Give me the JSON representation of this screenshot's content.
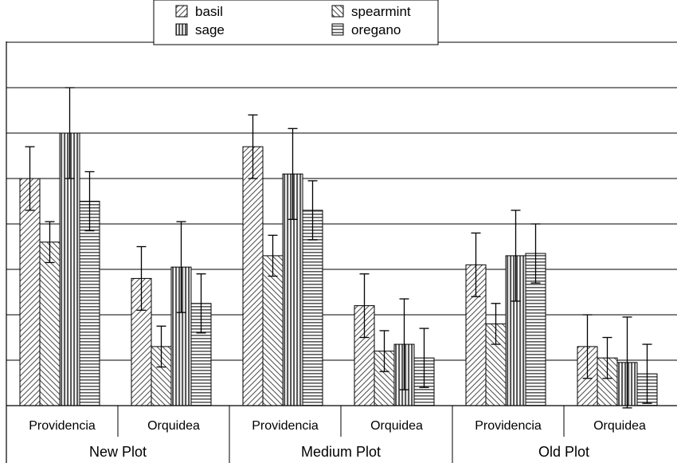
{
  "chart_data": {
    "type": "bar",
    "groups": [
      {
        "label": "New Plot",
        "subgroups": [
          "Providencia",
          "Orquidea"
        ]
      },
      {
        "label": "Medium Plot",
        "subgroups": [
          "Providencia",
          "Orquidea"
        ]
      },
      {
        "label": "Old Plot",
        "subgroups": [
          "Providencia",
          "Orquidea"
        ]
      }
    ],
    "categories": [
      "Providencia",
      "Orquidea",
      "Providencia",
      "Orquidea",
      "Providencia",
      "Orquidea"
    ],
    "series": [
      {
        "name": "basil",
        "pattern": "diag-up",
        "values": [
          5.0,
          2.8,
          5.7,
          2.2,
          3.1,
          1.3
        ],
        "errors": [
          0.7,
          0.7,
          0.7,
          0.7,
          0.7,
          0.7
        ]
      },
      {
        "name": "spearmint",
        "pattern": "diag-down",
        "values": [
          3.6,
          1.3,
          3.3,
          1.2,
          1.8,
          1.05
        ],
        "errors": [
          0.45,
          0.45,
          0.45,
          0.45,
          0.45,
          0.45
        ]
      },
      {
        "name": "sage",
        "pattern": "vertical",
        "values": [
          6.0,
          3.05,
          5.1,
          1.35,
          3.3,
          0.95
        ],
        "errors": [
          1.0,
          1.0,
          1.0,
          1.0,
          1.0,
          1.0
        ]
      },
      {
        "name": "oregano",
        "pattern": "horizontal",
        "values": [
          4.5,
          2.25,
          4.3,
          1.05,
          3.35,
          0.7
        ],
        "errors": [
          0.65,
          0.65,
          0.65,
          0.65,
          0.65,
          0.65
        ]
      }
    ],
    "ylim": [
      0,
      8
    ],
    "grid": true,
    "legend_position": "top-center",
    "title": "",
    "xlabel": "",
    "ylabel": ""
  }
}
